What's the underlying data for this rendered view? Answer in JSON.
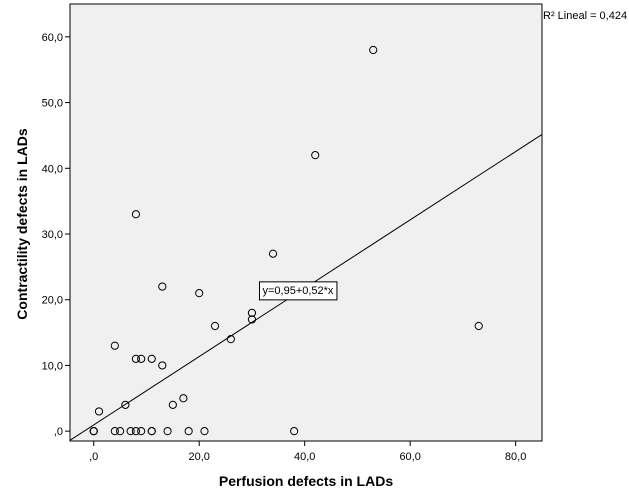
{
  "chart_data": {
    "type": "scatter",
    "xlabel": "Perfusion defects in LADs",
    "ylabel": "Contractility defects in LADs",
    "xlim": [
      -4.5,
      85
    ],
    "ylim": [
      -1.5,
      65
    ],
    "xticks": [
      0,
      20,
      40,
      60,
      80
    ],
    "xtick_labels": [
      ",0",
      "20,0",
      "40,0",
      "60,0",
      "80,0"
    ],
    "yticks": [
      0,
      10,
      20,
      30,
      40,
      50,
      60
    ],
    "ytick_labels": [
      ",0",
      "10,0",
      "20,0",
      "30,0",
      "40,0",
      "50,0",
      "60,0"
    ],
    "grid": false,
    "background": "#f0f0f0",
    "r_squared_label": "R² Lineal = 0,424",
    "fit_line": {
      "intercept": 0.95,
      "slope": 0.52,
      "label": "y=0,95+0,52*x",
      "label_x": 32,
      "label_y": 21.5
    },
    "points": [
      {
        "x": 0,
        "y": 0
      },
      {
        "x": 0,
        "y": 0
      },
      {
        "x": 0,
        "y": 0
      },
      {
        "x": 1,
        "y": 3
      },
      {
        "x": 4,
        "y": 13
      },
      {
        "x": 4,
        "y": 0
      },
      {
        "x": 5,
        "y": 0
      },
      {
        "x": 6,
        "y": 4
      },
      {
        "x": 7,
        "y": 0
      },
      {
        "x": 8,
        "y": 33
      },
      {
        "x": 8,
        "y": 11
      },
      {
        "x": 8,
        "y": 0
      },
      {
        "x": 9,
        "y": 11
      },
      {
        "x": 9,
        "y": 0
      },
      {
        "x": 11,
        "y": 11
      },
      {
        "x": 11,
        "y": 0
      },
      {
        "x": 11,
        "y": 0
      },
      {
        "x": 13,
        "y": 22
      },
      {
        "x": 13,
        "y": 10
      },
      {
        "x": 14,
        "y": 0
      },
      {
        "x": 15,
        "y": 4
      },
      {
        "x": 17,
        "y": 5
      },
      {
        "x": 18,
        "y": 0
      },
      {
        "x": 20,
        "y": 21
      },
      {
        "x": 21,
        "y": 0
      },
      {
        "x": 23,
        "y": 16
      },
      {
        "x": 26,
        "y": 14
      },
      {
        "x": 30,
        "y": 18
      },
      {
        "x": 30,
        "y": 17
      },
      {
        "x": 34,
        "y": 27
      },
      {
        "x": 38,
        "y": 0
      },
      {
        "x": 42,
        "y": 42
      },
      {
        "x": 53,
        "y": 58
      },
      {
        "x": 73,
        "y": 16
      }
    ]
  }
}
